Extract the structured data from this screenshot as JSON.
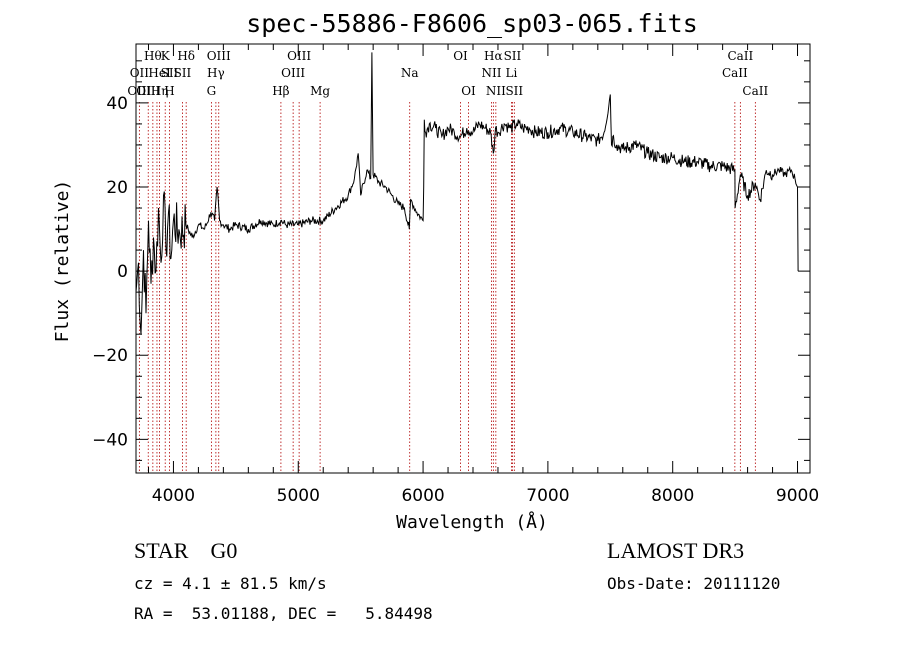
{
  "chart_data": {
    "type": "line",
    "title": "spec-55886-F8606_sp03-065.fits",
    "xlabel": "Wavelength (Å)",
    "ylabel": "Flux (relative)",
    "xlim": [
      3700,
      9100
    ],
    "ylim": [
      -48,
      54
    ],
    "xticks": [
      4000,
      5000,
      6000,
      7000,
      8000,
      9000
    ],
    "yticks": [
      -40,
      -20,
      0,
      20,
      40
    ],
    "series": [
      {
        "color": "#000000",
        "x": [
          3700,
          3720,
          3740,
          3760,
          3780,
          3800,
          3820,
          3840,
          3860,
          3880,
          3900,
          3920,
          3940,
          3960,
          3980,
          4000,
          4050,
          4100,
          4150,
          4200,
          4250,
          4300,
          4330,
          4350,
          4370,
          4400,
          4450,
          4500,
          4600,
          4700,
          4800,
          4860,
          4900,
          5000,
          5100,
          5200,
          5300,
          5400,
          5450,
          5480,
          5500,
          5550,
          5580,
          5590,
          5600,
          5650,
          5700,
          5750,
          5800,
          5850,
          5890,
          5900,
          5950,
          6000,
          6005,
          6010,
          6020,
          6050,
          6100,
          6150,
          6200,
          6250,
          6300,
          6350,
          6400,
          6450,
          6500,
          6540,
          6563,
          6580,
          6600,
          6650,
          6700,
          6750,
          6800,
          6850,
          6900,
          7000,
          7100,
          7200,
          7300,
          7400,
          7450,
          7500,
          7510,
          7520,
          7550,
          7600,
          7700,
          7800,
          7900,
          8000,
          8100,
          8200,
          8300,
          8400,
          8498,
          8500,
          8542,
          8600,
          8662,
          8700,
          8750,
          8800,
          8850,
          8900,
          8950,
          8980,
          9000,
          9005
        ],
        "y": [
          -5,
          2,
          -15,
          5,
          -10,
          12,
          -3,
          8,
          0,
          15,
          2,
          18,
          5,
          14,
          3,
          12,
          9,
          11,
          8,
          11,
          10,
          14,
          12,
          20,
          12,
          11,
          10,
          11,
          10,
          12,
          11,
          12,
          11,
          11,
          12,
          12,
          15,
          18,
          22,
          28,
          18,
          24,
          22,
          52,
          23,
          21,
          20,
          18,
          16,
          15,
          10,
          17,
          14,
          12,
          20,
          36,
          33,
          35,
          34,
          32,
          34,
          33,
          32,
          34,
          33,
          35,
          34,
          33,
          28,
          34,
          33,
          35,
          34,
          35,
          34,
          34,
          33,
          33,
          34,
          33,
          32,
          31,
          33,
          42,
          30,
          32,
          30,
          29,
          30,
          28,
          27,
          27,
          26,
          26,
          25,
          25,
          24,
          15,
          23,
          18,
          21,
          17,
          24,
          23,
          24,
          23,
          24,
          22,
          20,
          0
        ]
      }
    ],
    "lines": [
      {
        "wl": 3727,
        "top": "",
        "mid": "OII",
        "bot": "OIII"
      },
      {
        "wl": 3798,
        "top": "",
        "mid": "",
        "bot": "OIII"
      },
      {
        "wl": 3835,
        "top": "Hθ",
        "mid": "",
        "bot": ""
      },
      {
        "wl": 3868,
        "top": "",
        "mid": "",
        "bot": ""
      },
      {
        "wl": 3889,
        "top": "",
        "mid": "HeI",
        "bot": "Hη"
      },
      {
        "wl": 3934,
        "top": "K",
        "mid": "",
        "bot": ""
      },
      {
        "wl": 3968,
        "top": "",
        "mid": "SII",
        "bot": "H"
      },
      {
        "wl": 4072,
        "top": "",
        "mid": "SII",
        "bot": ""
      },
      {
        "wl": 4102,
        "top": "Hδ",
        "mid": "",
        "bot": ""
      },
      {
        "wl": 4304,
        "top": "",
        "mid": "",
        "bot": "G"
      },
      {
        "wl": 4340,
        "top": "",
        "mid": "Hγ",
        "bot": ""
      },
      {
        "wl": 4363,
        "top": "OIII",
        "mid": "",
        "bot": ""
      },
      {
        "wl": 4861,
        "top": "",
        "mid": "",
        "bot": "Hβ"
      },
      {
        "wl": 4959,
        "top": "",
        "mid": "OIII",
        "bot": ""
      },
      {
        "wl": 5007,
        "top": "OIII",
        "mid": "",
        "bot": ""
      },
      {
        "wl": 5175,
        "top": "",
        "mid": "",
        "bot": "Mg"
      },
      {
        "wl": 5893,
        "top": "",
        "mid": "Na",
        "bot": ""
      },
      {
        "wl": 6300,
        "top": "OI",
        "mid": "",
        "bot": ""
      },
      {
        "wl": 6364,
        "top": "",
        "mid": "",
        "bot": "OI"
      },
      {
        "wl": 6548,
        "top": "",
        "mid": "NII",
        "bot": ""
      },
      {
        "wl": 6563,
        "top": "Hα",
        "mid": "",
        "bot": ""
      },
      {
        "wl": 6583,
        "top": "",
        "mid": "",
        "bot": "NII"
      },
      {
        "wl": 6708,
        "top": "",
        "mid": "Li",
        "bot": ""
      },
      {
        "wl": 6716,
        "top": "SII",
        "mid": "",
        "bot": ""
      },
      {
        "wl": 6731,
        "top": "",
        "mid": "",
        "bot": "SII"
      },
      {
        "wl": 8498,
        "top": "",
        "mid": "CaII",
        "bot": ""
      },
      {
        "wl": 8542,
        "top": "CaII",
        "mid": "",
        "bot": ""
      },
      {
        "wl": 8662,
        "top": "",
        "mid": "",
        "bot": "CaII"
      }
    ]
  },
  "info": {
    "class_label": "STAR    G0",
    "survey_label": "LAMOST DR3",
    "cz_text": "cz = 4.1 ± 81.5 km/s",
    "obs_date_text": "Obs-Date: 20111120",
    "radec_text": "RA =  53.01188, DEC =   5.84498"
  }
}
